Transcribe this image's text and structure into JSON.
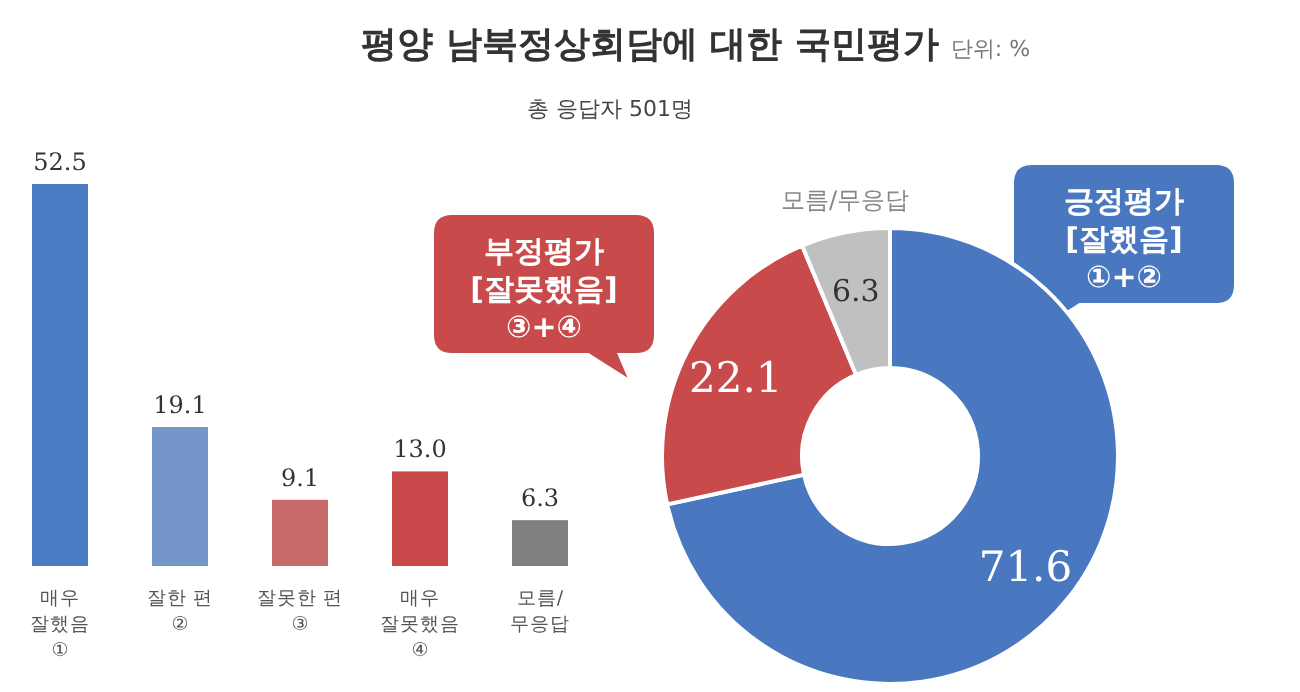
{
  "chart_data": [
    {
      "type": "bar",
      "title": "평양 남북정상회담에 대한 국민평가",
      "annotations": [
        "총 응답자 501명"
      ],
      "categories": [
        "매우\n잘했음\n①",
        "잘한 편\n②",
        "잘못한 편\n③",
        "매우\n잘못했음\n④",
        "모름/\n무응답"
      ],
      "values": [
        52.5,
        19.1,
        9.1,
        13.0,
        6.3
      ],
      "value_labels": [
        "52.5",
        "19.1",
        "9.1",
        "13.0",
        "6.3"
      ],
      "colors": [
        "#4a7cc4",
        "#7496c9",
        "#c96b6b",
        "#c8484a",
        "#7f7f7f"
      ]
    },
    {
      "type": "donut",
      "subtitle": "단위: %",
      "categories": [
        "긍정평가\n[잘했음]\n①+②",
        "부정평가\n[잘못했음]\n③+④",
        "모름/무응답"
      ],
      "values": [
        71.6,
        22.1,
        6.3
      ],
      "colors": [
        "#4a78c0",
        "#c84a4a",
        "#c0c0c0"
      ],
      "data_labels": true
    }
  ]
}
